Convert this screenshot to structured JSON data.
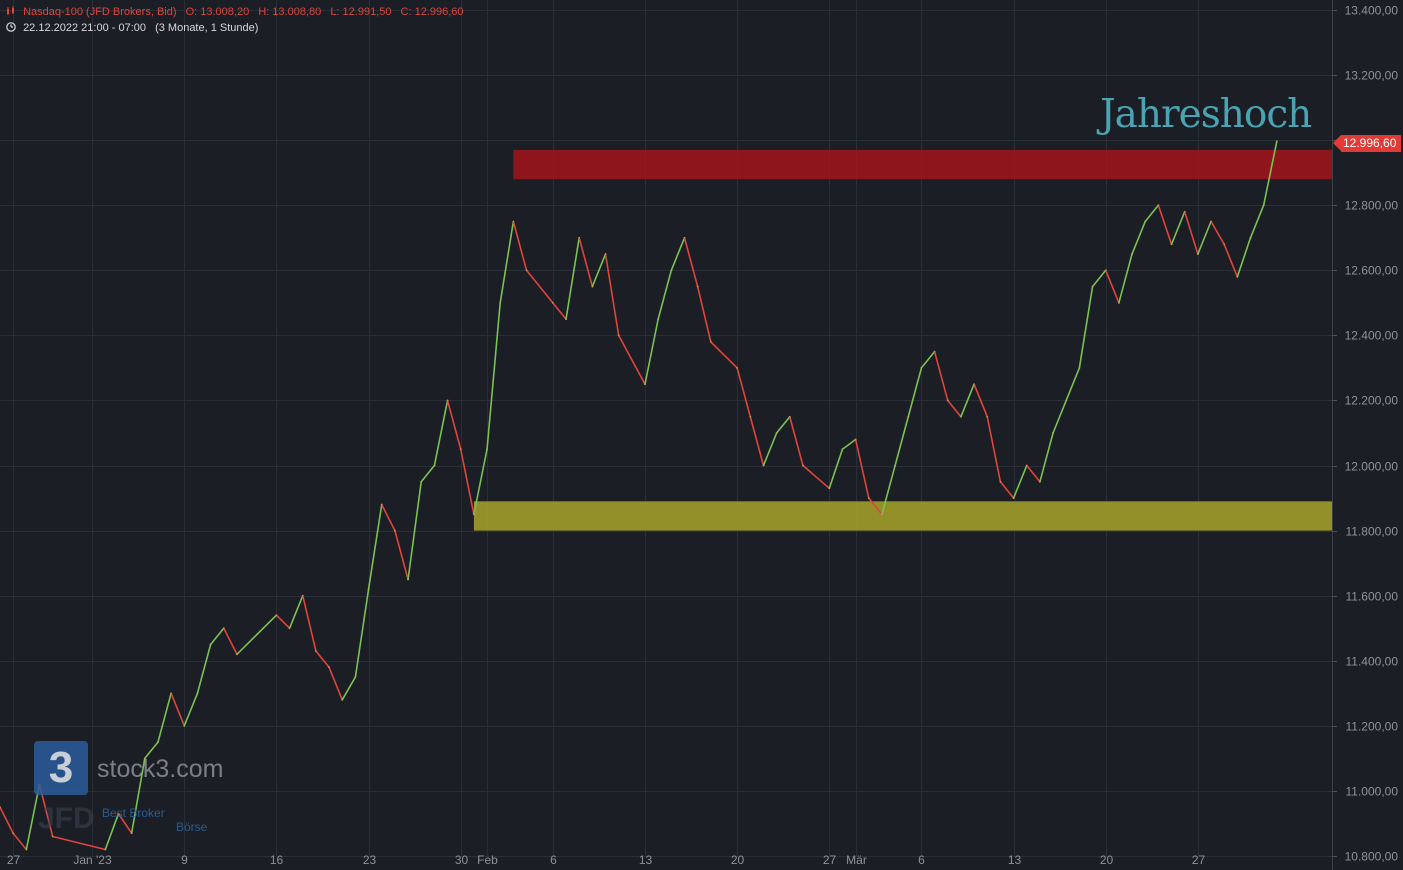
{
  "header": {
    "instrument": "Nasdaq-100 (JFD Brokers, Bid)",
    "open": "O: 13.008,20",
    "high": "H: 13.008,80",
    "low": "L: 12.991,50",
    "close": "C: 12.996,60",
    "time_range": "22.12.2022 21:00 - 07:00",
    "period": "(3 Monate, 1 Stunde)"
  },
  "current_price_label": "12.996,60",
  "annotation": "Jahreshoch",
  "watermark": {
    "logo_glyph": "3",
    "site": "stock3.com",
    "broker_logo": "JFD",
    "partner": "Best Broker",
    "partner2": "Börse"
  },
  "colors": {
    "background": "#1b1e24",
    "grid": "#2a2e36",
    "up": "#7ac254",
    "down": "#e0443c",
    "resistance_zone": "#a3141c",
    "support_zone": "#a8a32a",
    "price_tag": "#e23b36",
    "annotation": "#4aa3b3"
  },
  "chart_data": {
    "type": "line",
    "title": "Nasdaq-100 (JFD Brokers, Bid)",
    "ylim": [
      10800,
      13400
    ],
    "y_ticks": [
      "13.400,00",
      "13.200,00",
      "13.000,00",
      "12.800,00",
      "12.600,00",
      "12.400,00",
      "12.200,00",
      "12.000,00",
      "11.800,00",
      "11.600,00",
      "11.400,00",
      "11.200,00",
      "11.000,00",
      "10.800,00"
    ],
    "y_tick_values": [
      13400,
      13200,
      13000,
      12800,
      12600,
      12400,
      12200,
      12000,
      11800,
      11600,
      11400,
      11200,
      11000,
      10800
    ],
    "xlim": [
      "2022-12-26",
      "2023-04-03"
    ],
    "x_ticks": [
      {
        "label": "27",
        "date": "2022-12-27"
      },
      {
        "label": "Jan '23",
        "date": "2023-01-02"
      },
      {
        "label": "9",
        "date": "2023-01-09"
      },
      {
        "label": "16",
        "date": "2023-01-16"
      },
      {
        "label": "23",
        "date": "2023-01-23"
      },
      {
        "label": "30",
        "date": "2023-01-30"
      },
      {
        "label": "Feb",
        "date": "2023-02-01"
      },
      {
        "label": "6",
        "date": "2023-02-06"
      },
      {
        "label": "13",
        "date": "2023-02-13"
      },
      {
        "label": "20",
        "date": "2023-02-20"
      },
      {
        "label": "27",
        "date": "2023-02-27"
      },
      {
        "label": "Mär",
        "date": "2023-03-01"
      },
      {
        "label": "6",
        "date": "2023-03-06"
      },
      {
        "label": "13",
        "date": "2023-03-13"
      },
      {
        "label": "20",
        "date": "2023-03-20"
      },
      {
        "label": "27",
        "date": "2023-03-27"
      }
    ],
    "series": [
      {
        "values": [
          {
            "x": "2022-12-26",
            "y": 10950
          },
          {
            "x": "2022-12-27",
            "y": 10870
          },
          {
            "x": "2022-12-28",
            "y": 10820
          },
          {
            "x": "2022-12-29",
            "y": 11020
          },
          {
            "x": "2022-12-30",
            "y": 10860
          },
          {
            "x": "2023-01-03",
            "y": 10820
          },
          {
            "x": "2023-01-04",
            "y": 10930
          },
          {
            "x": "2023-01-05",
            "y": 10870
          },
          {
            "x": "2023-01-06",
            "y": 11100
          },
          {
            "x": "2023-01-07",
            "y": 11150
          },
          {
            "x": "2023-01-08",
            "y": 11300
          },
          {
            "x": "2023-01-09",
            "y": 11200
          },
          {
            "x": "2023-01-10",
            "y": 11300
          },
          {
            "x": "2023-01-11",
            "y": 11450
          },
          {
            "x": "2023-01-12",
            "y": 11500
          },
          {
            "x": "2023-01-13",
            "y": 11420
          },
          {
            "x": "2023-01-16",
            "y": 11540
          },
          {
            "x": "2023-01-17",
            "y": 11500
          },
          {
            "x": "2023-01-18",
            "y": 11600
          },
          {
            "x": "2023-01-19",
            "y": 11430
          },
          {
            "x": "2023-01-20",
            "y": 11380
          },
          {
            "x": "2023-01-21",
            "y": 11280
          },
          {
            "x": "2023-01-22",
            "y": 11350
          },
          {
            "x": "2023-01-23",
            "y": 11620
          },
          {
            "x": "2023-01-24",
            "y": 11880
          },
          {
            "x": "2023-01-25",
            "y": 11800
          },
          {
            "x": "2023-01-26",
            "y": 11650
          },
          {
            "x": "2023-01-27",
            "y": 11950
          },
          {
            "x": "2023-01-28",
            "y": 12000
          },
          {
            "x": "2023-01-29",
            "y": 12200
          },
          {
            "x": "2023-01-30",
            "y": 12050
          },
          {
            "x": "2023-01-31",
            "y": 11850
          },
          {
            "x": "2023-02-01",
            "y": 12050
          },
          {
            "x": "2023-02-02",
            "y": 12500
          },
          {
            "x": "2023-02-03",
            "y": 12750
          },
          {
            "x": "2023-02-04",
            "y": 12600
          },
          {
            "x": "2023-02-06",
            "y": 12500
          },
          {
            "x": "2023-02-07",
            "y": 12450
          },
          {
            "x": "2023-02-08",
            "y": 12700
          },
          {
            "x": "2023-02-09",
            "y": 12550
          },
          {
            "x": "2023-02-10",
            "y": 12650
          },
          {
            "x": "2023-02-11",
            "y": 12400
          },
          {
            "x": "2023-02-13",
            "y": 12250
          },
          {
            "x": "2023-02-14",
            "y": 12450
          },
          {
            "x": "2023-02-15",
            "y": 12600
          },
          {
            "x": "2023-02-16",
            "y": 12700
          },
          {
            "x": "2023-02-17",
            "y": 12550
          },
          {
            "x": "2023-02-18",
            "y": 12380
          },
          {
            "x": "2023-02-20",
            "y": 12300
          },
          {
            "x": "2023-02-21",
            "y": 12150
          },
          {
            "x": "2023-02-22",
            "y": 12000
          },
          {
            "x": "2023-02-23",
            "y": 12100
          },
          {
            "x": "2023-02-24",
            "y": 12150
          },
          {
            "x": "2023-02-25",
            "y": 12000
          },
          {
            "x": "2023-02-27",
            "y": 11930
          },
          {
            "x": "2023-02-28",
            "y": 12050
          },
          {
            "x": "2023-03-01",
            "y": 12080
          },
          {
            "x": "2023-03-02",
            "y": 11900
          },
          {
            "x": "2023-03-03",
            "y": 11850
          },
          {
            "x": "2023-03-04",
            "y": 12000
          },
          {
            "x": "2023-03-05",
            "y": 12150
          },
          {
            "x": "2023-03-06",
            "y": 12300
          },
          {
            "x": "2023-03-07",
            "y": 12350
          },
          {
            "x": "2023-03-08",
            "y": 12200
          },
          {
            "x": "2023-03-09",
            "y": 12150
          },
          {
            "x": "2023-03-10",
            "y": 12250
          },
          {
            "x": "2023-03-11",
            "y": 12150
          },
          {
            "x": "2023-03-12",
            "y": 11950
          },
          {
            "x": "2023-03-13",
            "y": 11900
          },
          {
            "x": "2023-03-14",
            "y": 12000
          },
          {
            "x": "2023-03-15",
            "y": 11950
          },
          {
            "x": "2023-03-16",
            "y": 12100
          },
          {
            "x": "2023-03-17",
            "y": 12200
          },
          {
            "x": "2023-03-18",
            "y": 12300
          },
          {
            "x": "2023-03-19",
            "y": 12550
          },
          {
            "x": "2023-03-20",
            "y": 12600
          },
          {
            "x": "2023-03-21",
            "y": 12500
          },
          {
            "x": "2023-03-22",
            "y": 12650
          },
          {
            "x": "2023-03-23",
            "y": 12750
          },
          {
            "x": "2023-03-24",
            "y": 12800
          },
          {
            "x": "2023-03-25",
            "y": 12680
          },
          {
            "x": "2023-03-26",
            "y": 12780
          },
          {
            "x": "2023-03-27",
            "y": 12650
          },
          {
            "x": "2023-03-28",
            "y": 12750
          },
          {
            "x": "2023-03-29",
            "y": 12680
          },
          {
            "x": "2023-03-30",
            "y": 12580
          },
          {
            "x": "2023-03-31",
            "y": 12700
          },
          {
            "x": "2023-04-01",
            "y": 12800
          },
          {
            "x": "2023-04-02",
            "y": 12996.6
          }
        ]
      }
    ],
    "zones": [
      {
        "name": "resistance",
        "from_date": "2023-02-03",
        "y_low": 12880,
        "y_high": 12970
      },
      {
        "name": "support",
        "from_date": "2023-01-31",
        "y_low": 11800,
        "y_high": 11890
      }
    ],
    "grid": true
  }
}
